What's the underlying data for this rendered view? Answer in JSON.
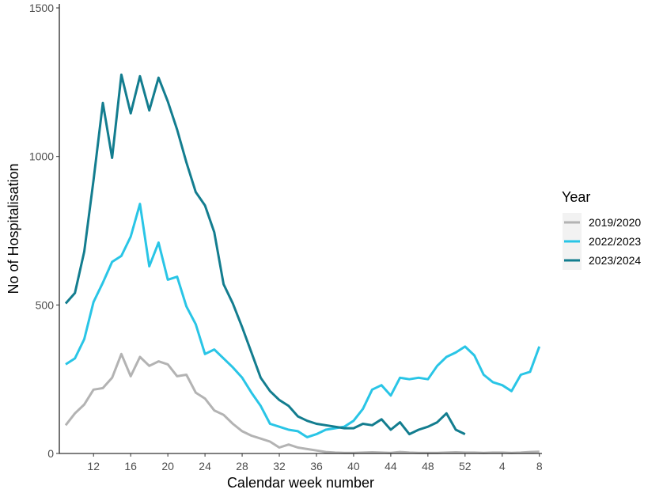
{
  "chart_data": {
    "type": "line",
    "title": "",
    "xlabel": "Calendar week number",
    "ylabel": "No of Hospitalisation",
    "ylim": [
      0,
      1500
    ],
    "yticks": [
      0,
      500,
      1000,
      1500
    ],
    "x_tick_labels": [
      "12",
      "16",
      "20",
      "24",
      "28",
      "32",
      "36",
      "40",
      "44",
      "48",
      "52",
      "4",
      "8"
    ],
    "grid": false,
    "legend": {
      "title": "Year",
      "position": "right"
    },
    "series": [
      {
        "name": "2019/2020",
        "color": "#b3b3b3",
        "x": [
          "9",
          "10",
          "11",
          "12",
          "13",
          "14",
          "15",
          "16",
          "17",
          "18",
          "19",
          "20",
          "21",
          "22",
          "23",
          "24",
          "25",
          "26",
          "27",
          "28",
          "29",
          "30",
          "31",
          "32",
          "33",
          "34",
          "35",
          "36",
          "37",
          "38",
          "39",
          "40",
          "41",
          "42",
          "43",
          "44",
          "45",
          "46",
          "47",
          "48",
          "49",
          "50",
          "51",
          "52",
          "1",
          "2",
          "3",
          "4",
          "5",
          "6",
          "7",
          "8"
        ],
        "values": [
          95,
          135,
          165,
          215,
          220,
          255,
          335,
          260,
          325,
          295,
          310,
          300,
          260,
          265,
          205,
          185,
          145,
          130,
          100,
          75,
          60,
          50,
          40,
          20,
          30,
          20,
          15,
          10,
          5,
          3,
          2,
          2,
          3,
          4,
          3,
          2,
          5,
          3,
          2,
          2,
          2,
          3,
          4,
          3,
          3,
          2,
          3,
          3,
          2,
          3,
          5,
          6
        ]
      },
      {
        "name": "2022/2023",
        "color": "#29c5e6",
        "x": [
          "9",
          "10",
          "11",
          "12",
          "13",
          "14",
          "15",
          "16",
          "17",
          "18",
          "19",
          "20",
          "21",
          "22",
          "23",
          "24",
          "25",
          "26",
          "27",
          "28",
          "29",
          "30",
          "31",
          "32",
          "33",
          "34",
          "35",
          "36",
          "37",
          "38",
          "39",
          "40",
          "41",
          "42",
          "43",
          "44",
          "45",
          "46",
          "47",
          "48",
          "49",
          "50",
          "51",
          "52",
          "1",
          "2",
          "3",
          "4",
          "5",
          "6",
          "7",
          "8"
        ],
        "values": [
          300,
          320,
          385,
          510,
          575,
          645,
          665,
          730,
          840,
          630,
          710,
          585,
          595,
          495,
          435,
          335,
          350,
          320,
          290,
          255,
          205,
          160,
          100,
          90,
          80,
          75,
          55,
          65,
          80,
          85,
          90,
          110,
          150,
          215,
          230,
          195,
          255,
          250,
          255,
          250,
          295,
          325,
          340,
          360,
          330,
          265,
          240,
          230,
          210,
          265,
          275,
          360
        ]
      },
      {
        "name": "2023/2024",
        "color": "#137d8f",
        "x": [
          "9",
          "10",
          "11",
          "12",
          "13",
          "14",
          "15",
          "16",
          "17",
          "18",
          "19",
          "20",
          "21",
          "22",
          "23",
          "24",
          "25",
          "26",
          "27",
          "28",
          "29",
          "30",
          "31",
          "32",
          "33",
          "34",
          "35",
          "36",
          "37",
          "38",
          "39",
          "40",
          "41",
          "42",
          "43",
          "44",
          "45",
          "46",
          "47",
          "48",
          "49",
          "50",
          "51",
          "52"
        ],
        "values": [
          505,
          540,
          680,
          920,
          1180,
          995,
          1275,
          1145,
          1270,
          1155,
          1265,
          1185,
          1090,
          980,
          880,
          835,
          745,
          570,
          505,
          425,
          340,
          255,
          210,
          180,
          160,
          125,
          110,
          100,
          95,
          90,
          85,
          85,
          100,
          95,
          115,
          80,
          105,
          65,
          80,
          90,
          105,
          135,
          80,
          65
        ]
      }
    ]
  }
}
